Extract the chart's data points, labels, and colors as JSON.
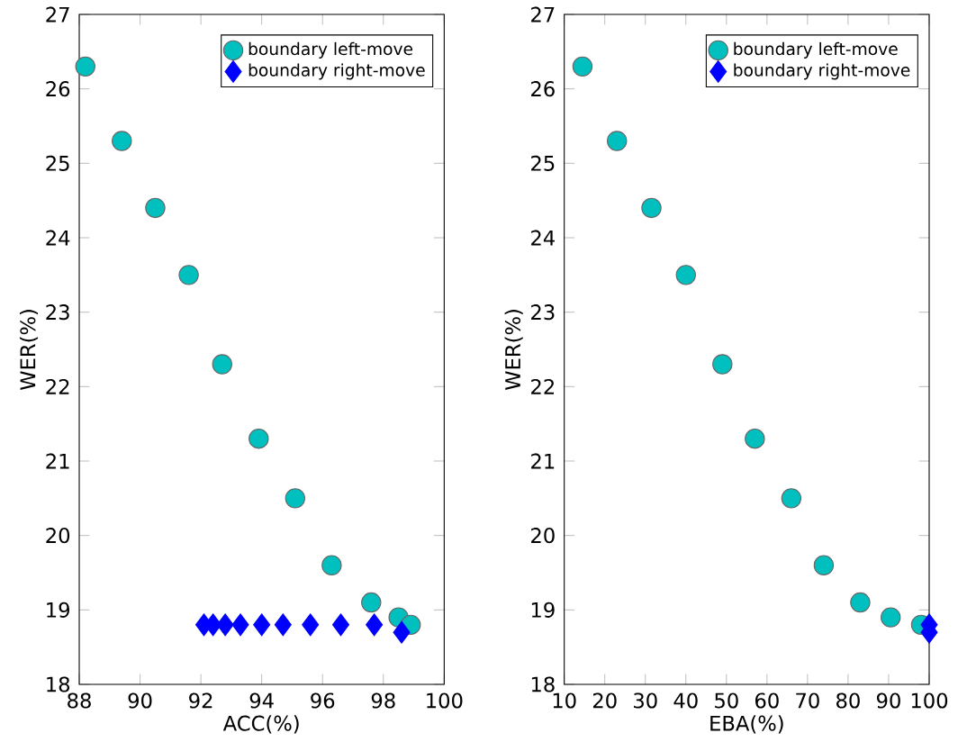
{
  "chart_data": [
    {
      "type": "scatter",
      "xlabel": "ACC(%)",
      "ylabel": "WER(%)",
      "xlim": [
        88,
        100
      ],
      "ylim": [
        18,
        27
      ],
      "xticks": [
        88,
        90,
        92,
        94,
        96,
        98,
        100
      ],
      "yticks": [
        18,
        19,
        20,
        21,
        22,
        23,
        24,
        25,
        26,
        27
      ],
      "legend": "top right",
      "grid": false,
      "series": [
        {
          "name": "boundary left-move",
          "color": "#00bfbf",
          "marker": "circle",
          "x": [
            88.2,
            89.4,
            90.5,
            91.6,
            92.7,
            93.9,
            95.1,
            96.3,
            97.6,
            98.5,
            98.9
          ],
          "values": [
            26.3,
            25.3,
            24.4,
            23.5,
            22.3,
            21.3,
            20.5,
            19.6,
            19.1,
            18.9,
            18.8
          ]
        },
        {
          "name": "boundary right-move",
          "color": "#0000ff",
          "marker": "diamond",
          "x": [
            92.1,
            92.4,
            92.8,
            93.3,
            94.0,
            94.7,
            95.6,
            96.6,
            97.7,
            98.6
          ],
          "values": [
            18.8,
            18.8,
            18.8,
            18.8,
            18.8,
            18.8,
            18.8,
            18.8,
            18.8,
            18.7
          ]
        }
      ]
    },
    {
      "type": "scatter",
      "xlabel": "EBA(%)",
      "ylabel": "WER(%)",
      "xlim": [
        10,
        100
      ],
      "ylim": [
        18,
        27
      ],
      "xticks": [
        10,
        20,
        30,
        40,
        50,
        60,
        70,
        80,
        90,
        100
      ],
      "yticks": [
        18,
        19,
        20,
        21,
        22,
        23,
        24,
        25,
        26,
        27
      ],
      "legend": "top right",
      "grid": false,
      "series": [
        {
          "name": "boundary left-move",
          "color": "#00bfbf",
          "marker": "circle",
          "x": [
            14.5,
            23,
            31.5,
            40,
            49,
            57,
            66,
            74,
            83,
            90.5,
            98
          ],
          "values": [
            26.3,
            25.3,
            24.4,
            23.5,
            22.3,
            21.3,
            20.5,
            19.6,
            19.1,
            18.9,
            18.8
          ]
        },
        {
          "name": "boundary right-move",
          "color": "#0000ff",
          "marker": "diamond",
          "x": [
            100,
            100
          ],
          "values": [
            18.8,
            18.7
          ]
        }
      ]
    }
  ]
}
